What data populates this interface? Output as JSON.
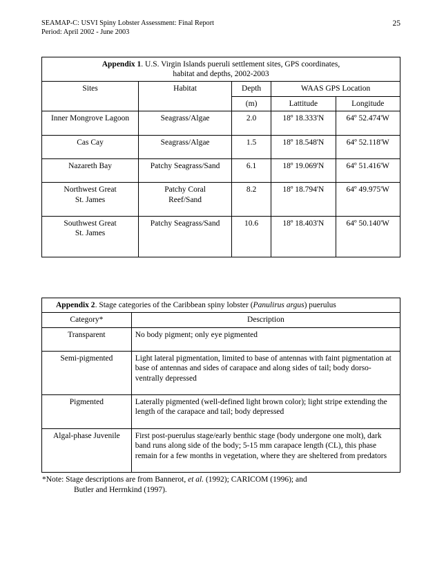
{
  "header": {
    "title_line1": "SEAMAP-C: USVI Spiny Lobster Assessment: Final Report",
    "title_line2": "Period: April 2002 - June 2003",
    "page_number": "25"
  },
  "appendix1": {
    "title_prefix": "Appendix 1",
    "title_rest": ".  U.S. Virgin Islands pueruli settlement sites, GPS coordinates,",
    "title_line2": "habitat and depths, 2002-2003",
    "head_sites": "Sites",
    "head_habitat": "Habitat",
    "head_depth": "Depth",
    "head_depth_unit": "(m)",
    "head_gps": "WAAS GPS Location",
    "head_lat": "Lattitude",
    "head_lon": "Longitude",
    "rows": [
      {
        "site_l1": "Inner Mongrove Lagoon",
        "site_l2": "",
        "habitat_l1": "Seagrass/Algae",
        "habitat_l2": "",
        "depth": "2.0",
        "lat": "18º 18.333'N",
        "lon": "64º 52.474'W"
      },
      {
        "site_l1": "Cas Cay",
        "site_l2": "",
        "habitat_l1": "Seagrass/Algae",
        "habitat_l2": "",
        "depth": "1.5",
        "lat": "18º 18.548'N",
        "lon": "64º 52.118'W"
      },
      {
        "site_l1": "Nazareth Bay",
        "site_l2": "",
        "habitat_l1": "Patchy Seagrass/Sand",
        "habitat_l2": "",
        "depth": "6.1",
        "lat": "18º 19.069'N",
        "lon": "64º 51.416'W"
      },
      {
        "site_l1": "Northwest Great",
        "site_l2": "St. James",
        "habitat_l1": "Patchy Coral",
        "habitat_l2": "Reef/Sand",
        "depth": "8.2",
        "lat": "18º 18.794'N",
        "lon": "64º 49.975'W"
      },
      {
        "site_l1": "Southwest Great",
        "site_l2": "St. James",
        "habitat_l1": "Patchy Seagrass/Sand",
        "habitat_l2": "",
        "depth": "10.6",
        "lat": "18º 18.403'N",
        "lon": "64º 50.140'W"
      }
    ]
  },
  "appendix2": {
    "title_prefix": "Appendix 2",
    "title_rest_a": ".  Stage categories of the Caribbean spiny lobster (",
    "title_rest_ital": "Panulirus argus",
    "title_rest_b": ") puerulus",
    "head_category": "Category*",
    "head_description": "Description",
    "rows": [
      {
        "cat": "Transparent",
        "desc": "No body pigment; only eye pigmented"
      },
      {
        "cat": "Semi-pigmented",
        "desc": "Light lateral pigmentation, limited to base of antennas with faint pigmentation at base of antennas and sides of carapace and along sides of tail; body dorso-ventrally depressed"
      },
      {
        "cat": "Pigmented",
        "desc": "Laterally pigmented (well-defined light brown color); light stripe extending the length of the carapace and tail; body depressed"
      },
      {
        "cat": "Algal-phase Juvenile",
        "desc": "First post-puerulus stage/early benthic stage (body undergone one molt), dark band runs along side of the body; 5-15 mm carapace length (CL), this phase remain for a few months in vegetation, where they are sheltered from predators"
      }
    ],
    "footnote_a": "*Note:  Stage descriptions are from Bannerot, ",
    "footnote_ital": "et al.",
    "footnote_b": " (1992); CARICOM (1996); and",
    "footnote_line2": "Butler and Herrnkind (1997)."
  }
}
